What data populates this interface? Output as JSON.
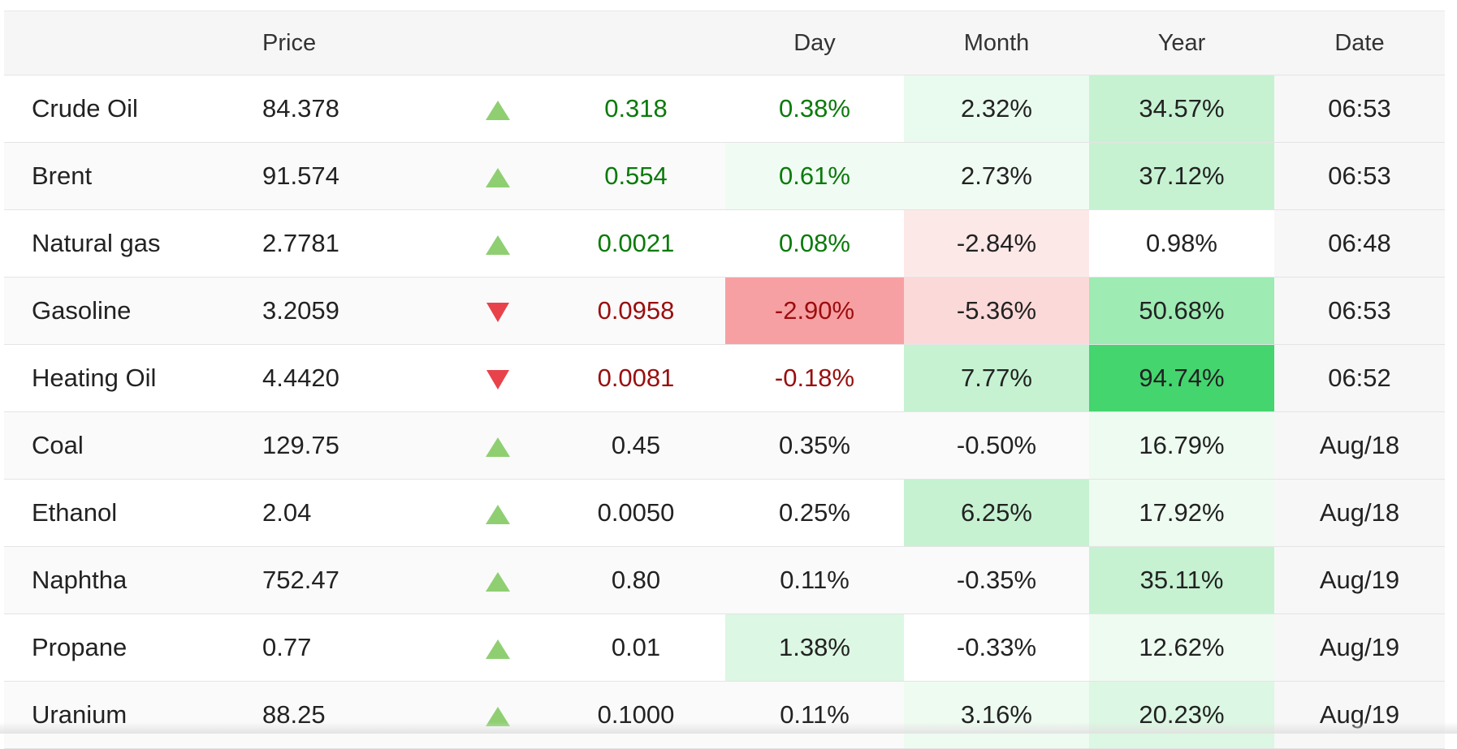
{
  "table": {
    "headers": {
      "name": "",
      "price": "Price",
      "arrow": "",
      "change": "",
      "day": "Day",
      "month": "Month",
      "year": "Year",
      "date": "Date"
    },
    "colors": {
      "up_arrow": "#8fcf72",
      "down_arrow": "#e8434a",
      "positive_text": "#0a7a0a",
      "negative_text": "#9a0e0e"
    },
    "rows": [
      {
        "name": "Crude Oil",
        "price": "84.378",
        "direction": "up",
        "change": "0.318",
        "day": "0.38%",
        "month": "2.32%",
        "year": "34.57%",
        "date": "06:53",
        "change_tone": "pos",
        "day_tone": "pos",
        "day_bg": "",
        "month_bg": "#e9fbee",
        "year_bg": "#c6f2d2"
      },
      {
        "name": "Brent",
        "price": "91.574",
        "direction": "up",
        "change": "0.554",
        "day": "0.61%",
        "month": "2.73%",
        "year": "37.12%",
        "date": "06:53",
        "change_tone": "pos",
        "day_tone": "pos",
        "day_bg": "#f0fcf3",
        "month_bg": "#f0fcf3",
        "year_bg": "#c6f2d2"
      },
      {
        "name": "Natural gas",
        "price": "2.7781",
        "direction": "up",
        "change": "0.0021",
        "day": "0.08%",
        "month": "-2.84%",
        "year": "0.98%",
        "date": "06:48",
        "change_tone": "pos",
        "day_tone": "pos",
        "day_bg": "",
        "month_bg": "#fde8e8",
        "year_bg": ""
      },
      {
        "name": "Gasoline",
        "price": "3.2059",
        "direction": "down",
        "change": "0.0958",
        "day": "-2.90%",
        "month": "-5.36%",
        "year": "50.68%",
        "date": "06:53",
        "change_tone": "neg",
        "day_tone": "neg",
        "day_bg": "#f7a0a3",
        "month_bg": "#fcd9d9",
        "year_bg": "#9eebb3"
      },
      {
        "name": "Heating Oil",
        "price": "4.4420",
        "direction": "down",
        "change": "0.0081",
        "day": "-0.18%",
        "month": "7.77%",
        "year": "94.74%",
        "date": "06:52",
        "change_tone": "neg",
        "day_tone": "neg",
        "day_bg": "",
        "month_bg": "#c6f2d2",
        "year_bg": "#44d56f"
      },
      {
        "name": "Coal",
        "price": "129.75",
        "direction": "up",
        "change": "0.45",
        "day": "0.35%",
        "month": "-0.50%",
        "year": "16.79%",
        "date": "Aug/18",
        "change_tone": "neutral",
        "day_tone": "neutral",
        "day_bg": "",
        "month_bg": "",
        "year_bg": "#eefbf1"
      },
      {
        "name": "Ethanol",
        "price": "2.04",
        "direction": "up",
        "change": "0.0050",
        "day": "0.25%",
        "month": "6.25%",
        "year": "17.92%",
        "date": "Aug/18",
        "change_tone": "neutral",
        "day_tone": "neutral",
        "day_bg": "",
        "month_bg": "#c6f2d2",
        "year_bg": "#eefbf1"
      },
      {
        "name": "Naphtha",
        "price": "752.47",
        "direction": "up",
        "change": "0.80",
        "day": "0.11%",
        "month": "-0.35%",
        "year": "35.11%",
        "date": "Aug/19",
        "change_tone": "neutral",
        "day_tone": "neutral",
        "day_bg": "",
        "month_bg": "",
        "year_bg": "#c6f2d2"
      },
      {
        "name": "Propane",
        "price": "0.77",
        "direction": "up",
        "change": "0.01",
        "day": "1.38%",
        "month": "-0.33%",
        "year": "12.62%",
        "date": "Aug/19",
        "change_tone": "neutral",
        "day_tone": "neutral",
        "day_bg": "#dcf7e3",
        "month_bg": "",
        "year_bg": "#eefbf1"
      },
      {
        "name": "Uranium",
        "price": "88.25",
        "direction": "up",
        "change": "0.1000",
        "day": "0.11%",
        "month": "3.16%",
        "year": "20.23%",
        "date": "Aug/19",
        "change_tone": "neutral",
        "day_tone": "neutral",
        "day_bg": "",
        "month_bg": "#eefbf1",
        "year_bg": "#dcf7e3"
      }
    ]
  }
}
